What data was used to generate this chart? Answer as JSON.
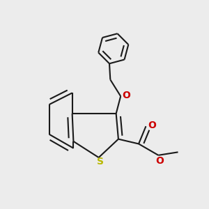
{
  "background_color": "#ececec",
  "line_color": "#1a1a1a",
  "sulfur_color": "#b8b800",
  "oxygen_color": "#cc0000",
  "line_width": 1.5,
  "figsize": [
    3.0,
    3.0
  ],
  "dpi": 100,
  "atoms": {
    "S": {
      "color": "#b8b800",
      "fontsize": 10
    },
    "O": {
      "color": "#cc0000",
      "fontsize": 10
    }
  }
}
